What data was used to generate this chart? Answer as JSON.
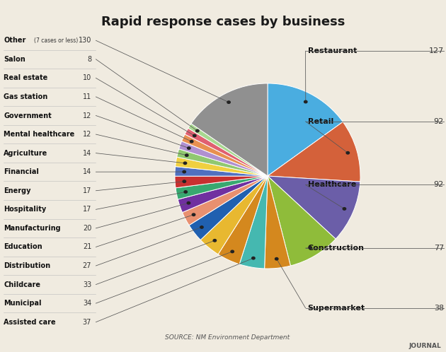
{
  "title": "Rapid response cases by business",
  "source": "SOURCE: NM Environment Department",
  "journal": "JOURNAL",
  "background_color": "#f0ebe0",
  "categories": [
    "Restaurant",
    "Retail",
    "Healthcare",
    "Construction",
    "Supermarket",
    "Assisted care",
    "Municipal",
    "Childcare",
    "Distribution",
    "Education",
    "Manufacturing",
    "Hospitality",
    "Energy",
    "Financial",
    "Agriculture",
    "Mental healthcare",
    "Government",
    "Gas station",
    "Real estate",
    "Salon",
    "Other"
  ],
  "values": [
    127,
    92,
    92,
    77,
    38,
    37,
    34,
    33,
    27,
    21,
    20,
    17,
    17,
    14,
    14,
    12,
    12,
    11,
    10,
    8,
    130
  ],
  "colors": [
    "#4aade0",
    "#d4613a",
    "#6b5ea8",
    "#8fbc3a",
    "#d4881e",
    "#45b8b0",
    "#d4881e",
    "#e8b830",
    "#2060b0",
    "#e89070",
    "#7030a0",
    "#38a870",
    "#c83030",
    "#5070c0",
    "#f0d040",
    "#90c870",
    "#b090d0",
    "#e89050",
    "#e06070",
    "#a8d890",
    "#909090"
  ],
  "left_cats_order": [
    "Other",
    "Salon",
    "Real estate",
    "Gas station",
    "Government",
    "Mental healthcare",
    "Agriculture",
    "Financial",
    "Energy",
    "Hospitality",
    "Manufacturing",
    "Education",
    "Distribution",
    "Childcare",
    "Municipal",
    "Assisted care"
  ],
  "left_vals_display": [
    130,
    8,
    10,
    11,
    12,
    12,
    14,
    14,
    17,
    17,
    20,
    21,
    27,
    33,
    34,
    37
  ],
  "right_cats": [
    "Restaurant",
    "Retail",
    "Healthcare",
    "Construction",
    "Supermarket"
  ],
  "right_vals": [
    127,
    92,
    92,
    77,
    38
  ]
}
